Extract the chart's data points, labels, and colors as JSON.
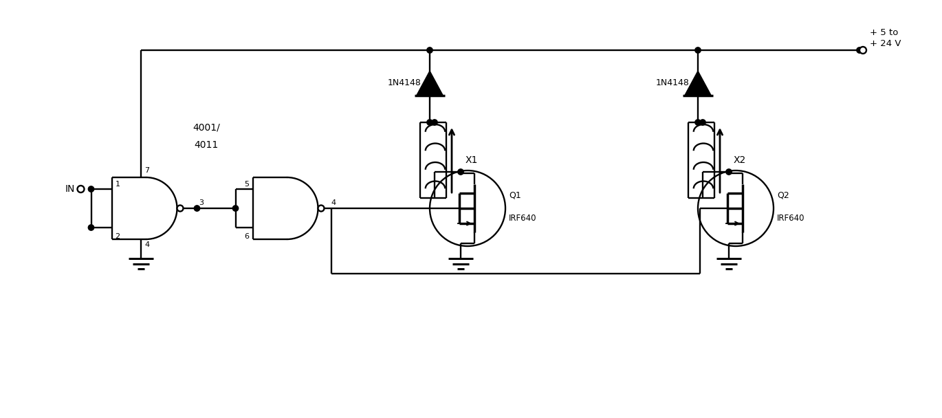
{
  "bg_color": "#ffffff",
  "lc": "#000000",
  "figsize": [
    13.7,
    6.08
  ],
  "dpi": 100,
  "label_4001": "4001/",
  "label_4011": "4011",
  "label_1n4148": "1N4148",
  "label_x1": "X1",
  "label_x2": "X2",
  "label_q1": "Q1",
  "label_q1b": "IRF640",
  "label_q2": "Q2",
  "label_q2b": "IRF640",
  "label_in": "IN",
  "label_vcc": "+ 5 to\n+ 24 V",
  "pin_labels": [
    "1",
    "2",
    "3",
    "4",
    "5",
    "6",
    "7"
  ]
}
